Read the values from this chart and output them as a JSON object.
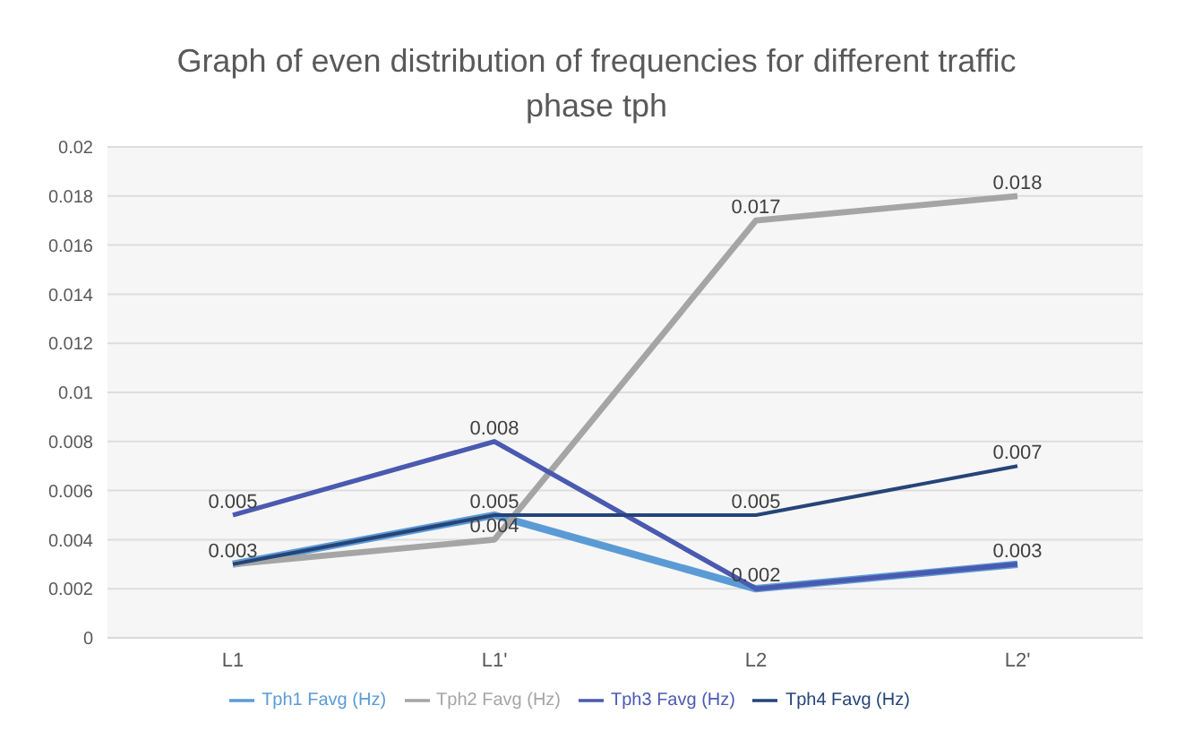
{
  "chart_data": {
    "type": "line",
    "title": "Graph of even distribution of frequencies for different traffic phase tph",
    "categories": [
      "L1",
      "L1'",
      "L2",
      "L2'"
    ],
    "series": [
      {
        "name": "Tph1  Favg (Hz)",
        "color": "#5b9bd5",
        "values": [
          0.003,
          0.005,
          0.002,
          0.003
        ],
        "value_labels": [
          "0.003",
          "0.005",
          "0.002",
          "0.003"
        ]
      },
      {
        "name": "Tph2 Favg (Hz)",
        "color": "#a5a5a5",
        "values": [
          0.003,
          0.004,
          0.017,
          0.018
        ],
        "value_labels": [
          null,
          "0.004",
          "0.017",
          "0.018"
        ]
      },
      {
        "name": "Tph3 Favg (Hz)",
        "color": "#4a5ab0",
        "values": [
          0.005,
          0.008,
          0.002,
          0.003
        ],
        "value_labels": [
          "0.005",
          "0.008",
          null,
          null
        ]
      },
      {
        "name": "Tph4 Favg (Hz)",
        "color": "#264478",
        "values": [
          0.003,
          0.005,
          0.005,
          0.007
        ],
        "value_labels": [
          null,
          null,
          "0.005",
          "0.007"
        ]
      }
    ],
    "ylim": [
      0,
      0.02
    ],
    "yticks": [
      0,
      0.002,
      0.004,
      0.006,
      0.008,
      0.01,
      0.012,
      0.014,
      0.016,
      0.018,
      0.02
    ],
    "grid": "y",
    "legend": "bottom",
    "marker": "none",
    "line_style": "solid"
  }
}
